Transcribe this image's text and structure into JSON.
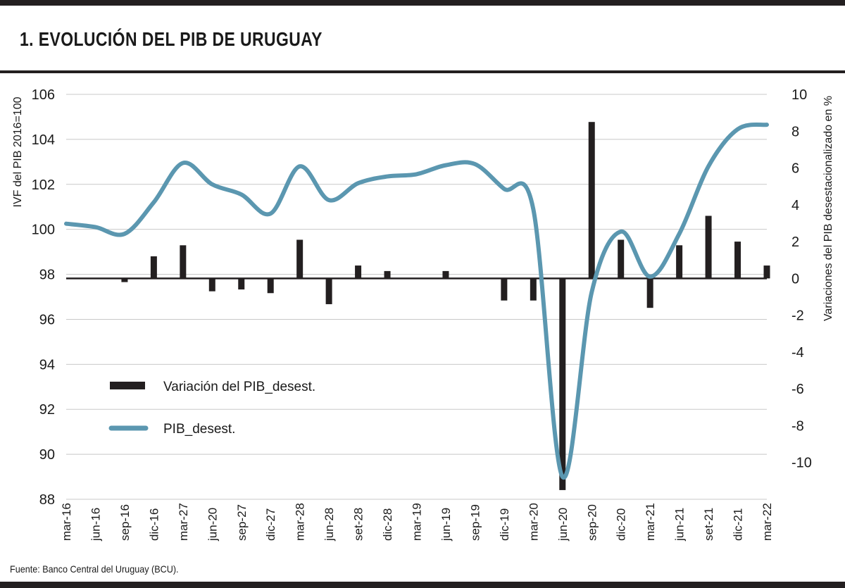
{
  "header": {
    "title": "1. EVOLUCIÓN DEL PIB DE URUGUAY"
  },
  "footer": {
    "source": "Fuente: Banco Central del Uruguay (BCU)."
  },
  "colors": {
    "line": "#5b97b0",
    "bar": "#231f20",
    "grid": "#c8c8c8",
    "rule": "#231f20"
  },
  "chart_data": {
    "type": "bar+line",
    "categories": [
      "mar-16",
      "jun-16",
      "sep-16",
      "dic-16",
      "mar-27",
      "jun-20",
      "sep-27",
      "dic-27",
      "mar-28",
      "jun-28",
      "set-28",
      "dic-28",
      "mar-19",
      "jun-19",
      "sep-19",
      "dic-19",
      "mar-20",
      "jun-20",
      "sep-20",
      "dic-20",
      "mar-21",
      "jun-21",
      "set-21",
      "dic-21",
      "mar-22"
    ],
    "ylabel_left": "IVF del PIB 2016=100",
    "ylabel_right": "Variaciones del PIB desestacionalizado en %",
    "y_left": {
      "min": 88,
      "max": 106,
      "ticks": [
        88,
        90,
        92,
        94,
        96,
        98,
        100,
        102,
        104,
        106
      ]
    },
    "y_right": {
      "min": -12,
      "max": 10,
      "ticks": [
        -10,
        -8,
        -6,
        -4,
        -2,
        0,
        2,
        4,
        6,
        8,
        10
      ]
    },
    "grid": true,
    "legend_position": "lower-left",
    "series": [
      {
        "name": "Variación del PIB_desest.",
        "type": "bar",
        "axis": "right",
        "values": [
          0,
          0,
          -0.2,
          1.2,
          1.8,
          -0.7,
          -0.6,
          -0.8,
          2.1,
          -1.4,
          0.7,
          0.4,
          0,
          0.4,
          0,
          -1.2,
          -1.2,
          -11.5,
          8.5,
          2.1,
          -1.6,
          1.8,
          3.4,
          2.0,
          0.7
        ]
      },
      {
        "name": "PIB_desest.",
        "type": "line",
        "axis": "left",
        "values": [
          100.25,
          100.1,
          99.8,
          101.2,
          102.95,
          102.0,
          101.55,
          100.7,
          102.8,
          101.3,
          102.05,
          102.35,
          102.45,
          102.85,
          102.9,
          101.8,
          100.9,
          89.0,
          97.2,
          99.9,
          97.9,
          99.8,
          102.8,
          104.45,
          104.65
        ]
      }
    ]
  }
}
